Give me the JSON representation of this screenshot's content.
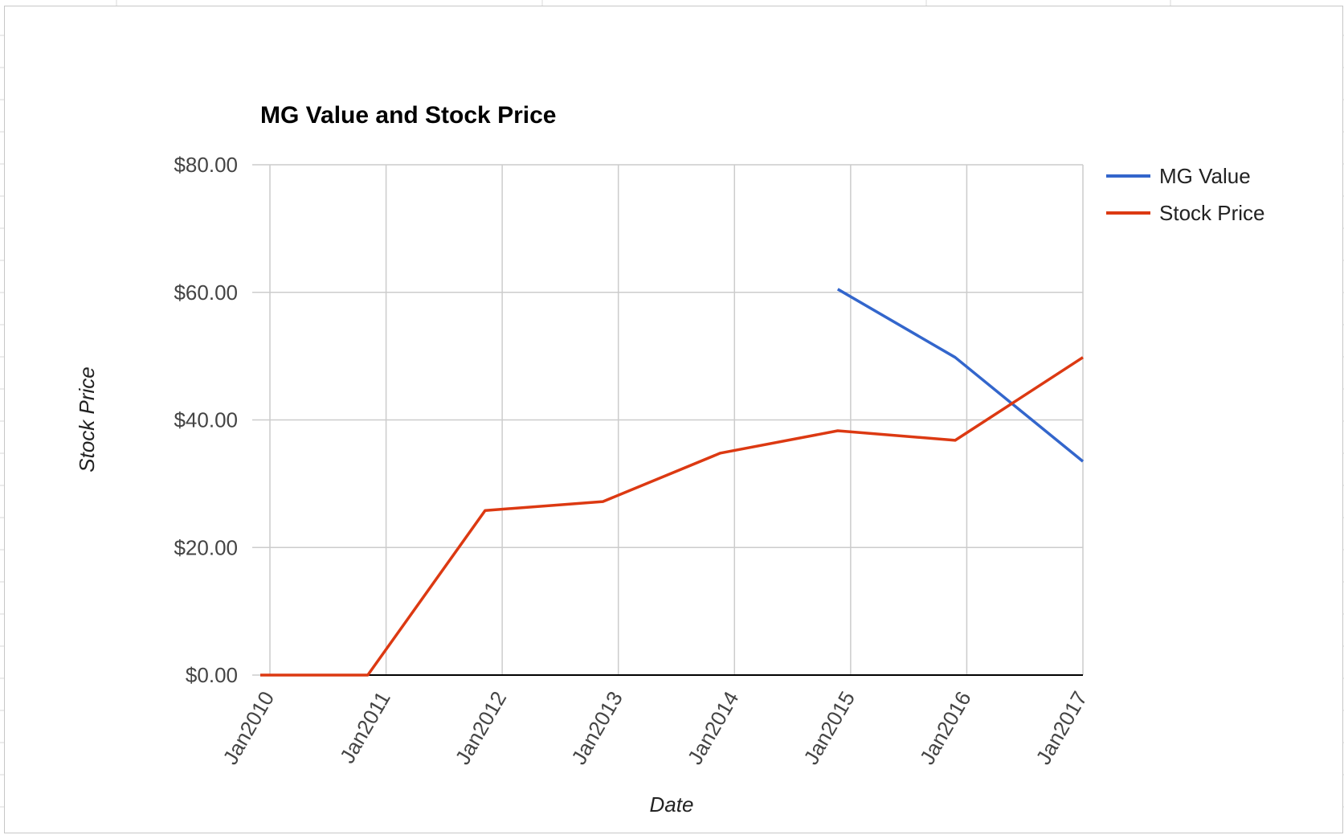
{
  "chart_data": {
    "type": "line",
    "title": "MG Value and Stock Price",
    "xlabel": "Date",
    "ylabel": "Stock Price",
    "categories": [
      "Jan2010",
      "Jan2011",
      "Jan2012",
      "Jan2013",
      "Jan2014",
      "Jan2015",
      "Jan2016",
      "Jan2017"
    ],
    "x": [
      "2010-01-01",
      "2010-12-01",
      "2011-12-01",
      "2012-12-01",
      "2013-12-01",
      "2014-12-01",
      "2015-12-01",
      "2017-01-01"
    ],
    "yticks": [
      "$0.00",
      "$20.00",
      "$40.00",
      "$60.00",
      "$80.00"
    ],
    "ytick_values": [
      0,
      20,
      40,
      60,
      80
    ],
    "ylim": [
      0,
      80
    ],
    "grid": true,
    "legend_position": "right",
    "series": [
      {
        "name": "MG Value",
        "color": "#3366cc",
        "values": [
          null,
          null,
          null,
          null,
          null,
          60.5,
          49.8,
          33.5
        ]
      },
      {
        "name": "Stock Price",
        "color": "#dc3912",
        "values": [
          0,
          0,
          25.8,
          27.2,
          34.8,
          38.3,
          36.8,
          49.8
        ]
      }
    ]
  }
}
